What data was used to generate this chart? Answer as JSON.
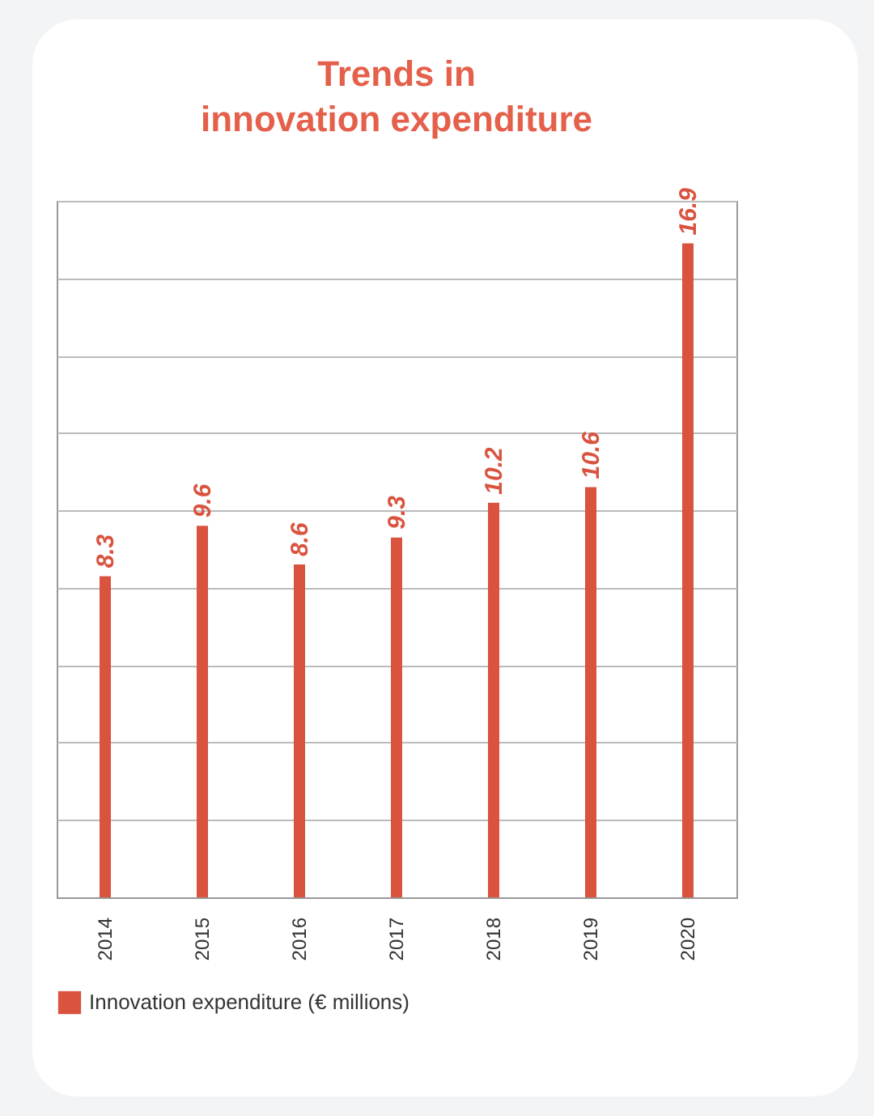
{
  "chart_data": {
    "type": "bar",
    "title": "Trends in innovation expenditure",
    "categories": [
      "2014",
      "2015",
      "2016",
      "2017",
      "2018",
      "2019",
      "2020"
    ],
    "series": [
      {
        "name": "Innovation expenditure (€ millions)",
        "color": "#d9533f",
        "values": [
          8.3,
          9.6,
          8.6,
          9.3,
          10.2,
          10.6,
          16.9
        ]
      }
    ],
    "data_labels": true,
    "grid": "y",
    "legend": "bottom",
    "tick_labels": "x"
  }
}
